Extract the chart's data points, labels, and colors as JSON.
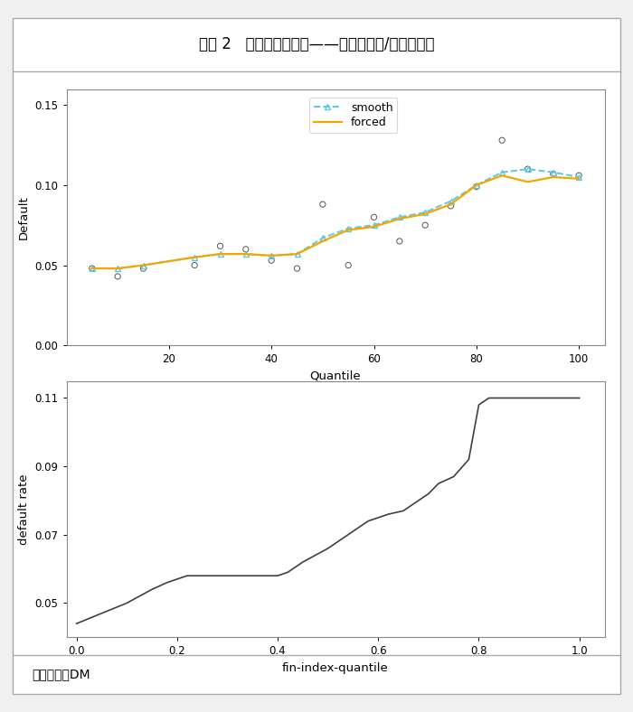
{
  "title": "图表 2   违约率转换示例——关联方占款/营业总收入",
  "source_text": "资料来源：DM",
  "outer_bg": "#f0f0f0",
  "inner_bg": "#ffffff",
  "plot_bg_color": "#ffffff",
  "panel1": {
    "xlabel": "Quantile",
    "ylabel": "Default",
    "xlim": [
      0,
      105
    ],
    "ylim": [
      0.0,
      0.16
    ],
    "yticks": [
      0.0,
      0.05,
      0.1,
      0.15
    ],
    "xticks": [
      20,
      40,
      60,
      80,
      100
    ],
    "smooth_color": "#5bc8e8",
    "forced_color": "#f0a800",
    "smooth_x": [
      5,
      10,
      15,
      25,
      30,
      35,
      40,
      45,
      50,
      55,
      60,
      65,
      70,
      75,
      80,
      85,
      90,
      95,
      100
    ],
    "smooth_y": [
      0.048,
      0.048,
      0.05,
      0.055,
      0.057,
      0.057,
      0.056,
      0.057,
      0.067,
      0.073,
      0.075,
      0.08,
      0.083,
      0.09,
      0.1,
      0.108,
      0.11,
      0.108,
      0.105
    ],
    "forced_x": [
      5,
      10,
      15,
      25,
      30,
      35,
      40,
      45,
      50,
      55,
      60,
      65,
      70,
      75,
      80,
      85,
      90,
      95,
      100
    ],
    "forced_y": [
      0.048,
      0.048,
      0.05,
      0.055,
      0.057,
      0.057,
      0.056,
      0.057,
      0.065,
      0.072,
      0.074,
      0.079,
      0.082,
      0.088,
      0.1,
      0.106,
      0.102,
      0.105,
      0.104
    ],
    "raw_x": [
      5,
      10,
      15,
      25,
      30,
      35,
      40,
      45,
      50,
      55,
      60,
      65,
      70,
      75,
      80,
      85,
      90,
      95,
      100
    ],
    "raw_y": [
      0.048,
      0.043,
      0.048,
      0.05,
      0.062,
      0.06,
      0.053,
      0.048,
      0.088,
      0.05,
      0.08,
      0.065,
      0.075,
      0.087,
      0.099,
      0.128,
      0.11,
      0.107,
      0.106
    ],
    "legend_smooth": "smooth",
    "legend_forced": "forced"
  },
  "panel2": {
    "xlabel": "fin-index-quantile",
    "ylabel": "default rate",
    "xlim": [
      -0.02,
      1.05
    ],
    "ylim": [
      0.04,
      0.115
    ],
    "yticks": [
      0.05,
      0.07,
      0.09,
      0.11
    ],
    "xticks": [
      0.0,
      0.2,
      0.4,
      0.6,
      0.8,
      1.0
    ],
    "line_color": "#404040",
    "curve_x": [
      0.0,
      0.05,
      0.1,
      0.15,
      0.18,
      0.2,
      0.22,
      0.25,
      0.3,
      0.35,
      0.38,
      0.4,
      0.42,
      0.45,
      0.5,
      0.55,
      0.58,
      0.6,
      0.62,
      0.65,
      0.7,
      0.72,
      0.75,
      0.78,
      0.8,
      0.82,
      0.85,
      0.88,
      0.9,
      0.92,
      0.95,
      1.0
    ],
    "curve_y": [
      0.044,
      0.047,
      0.05,
      0.054,
      0.056,
      0.057,
      0.058,
      0.058,
      0.058,
      0.058,
      0.058,
      0.058,
      0.059,
      0.062,
      0.066,
      0.071,
      0.074,
      0.075,
      0.076,
      0.077,
      0.082,
      0.085,
      0.087,
      0.092,
      0.108,
      0.11,
      0.11,
      0.11,
      0.11,
      0.11,
      0.11,
      0.11
    ]
  }
}
